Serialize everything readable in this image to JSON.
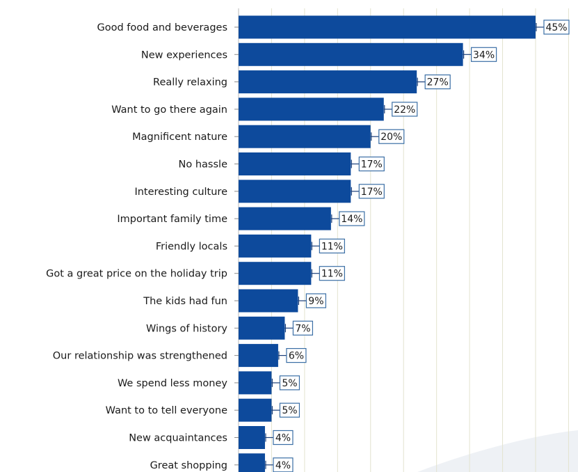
{
  "chart_data": {
    "type": "bar",
    "orientation": "horizontal",
    "categories": [
      "Good food and beverages",
      "New experiences",
      "Really relaxing",
      "Want to go there again",
      "Magnificent nature",
      "No hassle",
      "Interesting culture",
      "Important family time",
      "Friendly locals",
      "Got a great price on the holiday trip",
      "The kids had fun",
      "Wings of history",
      "Our relationship was strengthened",
      "We spend less money",
      "Want to to tell everyone",
      "New acquaintances",
      "Great shopping"
    ],
    "values": [
      45,
      34,
      27,
      22,
      20,
      17,
      17,
      14,
      11,
      11,
      9,
      7,
      6,
      5,
      5,
      4,
      4
    ],
    "value_labels": [
      "45%",
      "34%",
      "27%",
      "22%",
      "20%",
      "17%",
      "17%",
      "14%",
      "11%",
      "11%",
      "9%",
      "7%",
      "6%",
      "5%",
      "5%",
      "4%",
      "4%"
    ],
    "xlim": [
      0,
      50
    ],
    "grid": true,
    "title": "",
    "xlabel": "",
    "ylabel": ""
  },
  "colors": {
    "bar": "#0d4a9c",
    "value_box_border": "#3a6ea5",
    "gridline": "#e3e3cf",
    "text": "#1a1a1a"
  }
}
